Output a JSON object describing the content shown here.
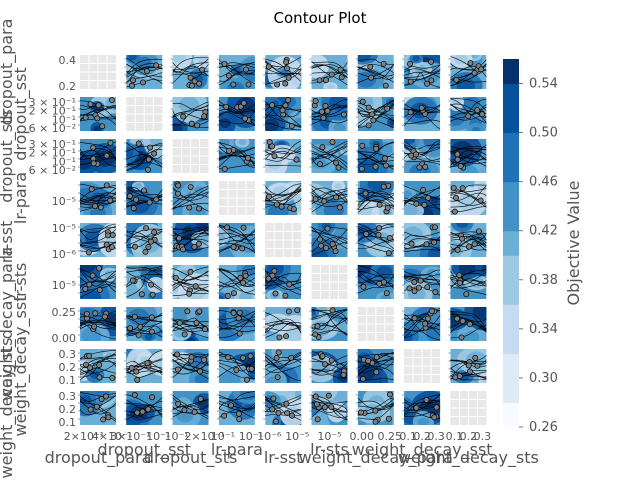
{
  "chart_data": {
    "type": "contour",
    "title": "Contour Plot",
    "params": [
      "dropout_para",
      "dropout_sst",
      "dropout_sts",
      "lr-para",
      "lr-sst",
      "lr-sts",
      "weight_decay_para",
      "weight_decay_sst",
      "weight_decay_sts"
    ],
    "row_labels": [
      "dropout_para",
      "dropout_sst",
      "dropout_sts",
      "lr-para",
      "lr-sst",
      "lr-sts",
      "weight_decay_para",
      "weight_decay_sst",
      "weight_decay_sts"
    ],
    "col_labels": [
      "dropout_para",
      "dropout_sst",
      "dropout_sts",
      "lr-para",
      "lr-sst",
      "lr-sts",
      "weight_decay_para",
      "weight_decay_sst",
      "weight_decay_sts"
    ],
    "y_ticks": [
      [
        "0.4",
        "0.2"
      ],
      [
        "3 × 10⁻¹",
        "2 × 10⁻¹",
        "10⁻¹",
        "6 × 10⁻²"
      ],
      [
        "3 × 10⁻¹",
        "2 × 10⁻¹",
        "10⁻¹",
        "6 × 10⁻²"
      ],
      [
        "10⁻⁵"
      ],
      [
        "10⁻⁵",
        "10⁻⁶"
      ],
      [
        "10⁻⁵"
      ],
      [
        "0.25",
        "0.00"
      ],
      [
        "0.3",
        "0.2",
        "0.1"
      ],
      [
        "0.3",
        "0.2",
        "0.1"
      ]
    ],
    "x_ticks": [
      [
        "2×10⁻¹",
        "4×10⁻¹"
      ],
      [
        "3×10⁻¹",
        "10⁻¹"
      ],
      [
        "10⁻¹",
        "2×10⁻¹"
      ],
      [
        "10⁻¹",
        "10⁻¹"
      ],
      [
        "10⁻⁶",
        "10⁻⁵"
      ],
      [
        "10⁻⁵"
      ],
      [
        "0.00",
        "0.25"
      ],
      [
        "0.1",
        "0.2",
        "0.3"
      ],
      [
        "0.1",
        "0.2",
        "0.3"
      ]
    ],
    "colorbar": {
      "label": "Objective Value",
      "ticks": [
        "0.26",
        "0.30",
        "0.34",
        "0.38",
        "0.42",
        "0.46",
        "0.50",
        "0.54"
      ],
      "range": [
        0.26,
        0.56
      ],
      "colormap": "Blues"
    },
    "points_color": "#808080",
    "diagonal_panels": "empty",
    "colors": {
      "panel_bg": "#eaeaf2",
      "text": "#555555",
      "contour_line": "#000000"
    }
  }
}
